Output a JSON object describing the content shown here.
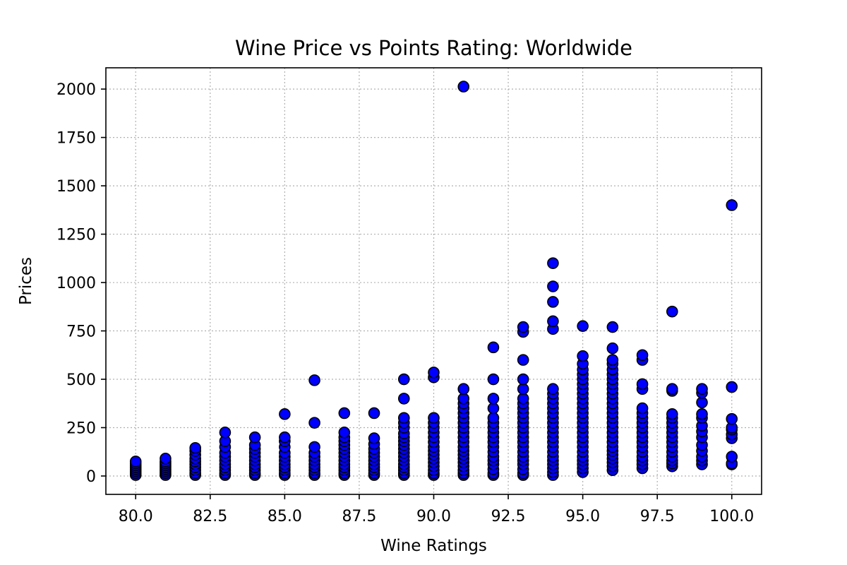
{
  "chart_data": {
    "type": "scatter",
    "title": "Wine Price vs Points Rating: Worldwide",
    "xlabel": "Wine Ratings",
    "ylabel": "Prices",
    "xlim": [
      79.0,
      101.0
    ],
    "ylim": [
      -95,
      2110
    ],
    "xticks": [
      80.0,
      82.5,
      85.0,
      87.5,
      90.0,
      92.5,
      95.0,
      97.5,
      100.0
    ],
    "xtick_labels": [
      "80.0",
      "82.5",
      "85.0",
      "87.5",
      "90.0",
      "92.5",
      "95.0",
      "97.5",
      "100.0"
    ],
    "yticks": [
      0,
      250,
      500,
      750,
      1000,
      1250,
      1500,
      1750,
      2000
    ],
    "ytick_labels": [
      "0",
      "250",
      "500",
      "750",
      "1000",
      "1250",
      "1500",
      "1750",
      "2000"
    ],
    "grid": true,
    "marker_color": "#0000ff",
    "marker_edge_color": "#000000",
    "points": [
      [
        80,
        5
      ],
      [
        80,
        15
      ],
      [
        80,
        25
      ],
      [
        80,
        35
      ],
      [
        80,
        45
      ],
      [
        80,
        55
      ],
      [
        80,
        65
      ],
      [
        80,
        75
      ],
      [
        81,
        5
      ],
      [
        81,
        15
      ],
      [
        81,
        25
      ],
      [
        81,
        35
      ],
      [
        81,
        45
      ],
      [
        81,
        55
      ],
      [
        81,
        65
      ],
      [
        81,
        75
      ],
      [
        81,
        90
      ],
      [
        82,
        5
      ],
      [
        82,
        15
      ],
      [
        82,
        30
      ],
      [
        82,
        45
      ],
      [
        82,
        60
      ],
      [
        82,
        75
      ],
      [
        82,
        90
      ],
      [
        82,
        110
      ],
      [
        82,
        130
      ],
      [
        82,
        145
      ],
      [
        83,
        5
      ],
      [
        83,
        15
      ],
      [
        83,
        30
      ],
      [
        83,
        45
      ],
      [
        83,
        60
      ],
      [
        83,
        80
      ],
      [
        83,
        100
      ],
      [
        83,
        120
      ],
      [
        83,
        150
      ],
      [
        83,
        180
      ],
      [
        83,
        225
      ],
      [
        84,
        5
      ],
      [
        84,
        15
      ],
      [
        84,
        30
      ],
      [
        84,
        45
      ],
      [
        84,
        60
      ],
      [
        84,
        80
      ],
      [
        84,
        100
      ],
      [
        84,
        120
      ],
      [
        84,
        140
      ],
      [
        84,
        160
      ],
      [
        84,
        200
      ],
      [
        85,
        5
      ],
      [
        85,
        15
      ],
      [
        85,
        30
      ],
      [
        85,
        45
      ],
      [
        85,
        60
      ],
      [
        85,
        80
      ],
      [
        85,
        100
      ],
      [
        85,
        120
      ],
      [
        85,
        150
      ],
      [
        85,
        180
      ],
      [
        85,
        200
      ],
      [
        85,
        320
      ],
      [
        86,
        5
      ],
      [
        86,
        15
      ],
      [
        86,
        30
      ],
      [
        86,
        45
      ],
      [
        86,
        60
      ],
      [
        86,
        80
      ],
      [
        86,
        100
      ],
      [
        86,
        120
      ],
      [
        86,
        150
      ],
      [
        86,
        275
      ],
      [
        86,
        495
      ],
      [
        87,
        5
      ],
      [
        87,
        15
      ],
      [
        87,
        30
      ],
      [
        87,
        45
      ],
      [
        87,
        60
      ],
      [
        87,
        80
      ],
      [
        87,
        100
      ],
      [
        87,
        120
      ],
      [
        87,
        140
      ],
      [
        87,
        160
      ],
      [
        87,
        180
      ],
      [
        87,
        200
      ],
      [
        87,
        225
      ],
      [
        87,
        325
      ],
      [
        88,
        5
      ],
      [
        88,
        15
      ],
      [
        88,
        30
      ],
      [
        88,
        45
      ],
      [
        88,
        60
      ],
      [
        88,
        80
      ],
      [
        88,
        100
      ],
      [
        88,
        120
      ],
      [
        88,
        140
      ],
      [
        88,
        165
      ],
      [
        88,
        195
      ],
      [
        88,
        325
      ],
      [
        89,
        5
      ],
      [
        89,
        15
      ],
      [
        89,
        30
      ],
      [
        89,
        45
      ],
      [
        89,
        60
      ],
      [
        89,
        80
      ],
      [
        89,
        100
      ],
      [
        89,
        120
      ],
      [
        89,
        140
      ],
      [
        89,
        160
      ],
      [
        89,
        180
      ],
      [
        89,
        200
      ],
      [
        89,
        220
      ],
      [
        89,
        250
      ],
      [
        89,
        275
      ],
      [
        89,
        300
      ],
      [
        89,
        400
      ],
      [
        89,
        500
      ],
      [
        90,
        5
      ],
      [
        90,
        15
      ],
      [
        90,
        30
      ],
      [
        90,
        50
      ],
      [
        90,
        70
      ],
      [
        90,
        90
      ],
      [
        90,
        110
      ],
      [
        90,
        130
      ],
      [
        90,
        150
      ],
      [
        90,
        175
      ],
      [
        90,
        200
      ],
      [
        90,
        225
      ],
      [
        90,
        250
      ],
      [
        90,
        275
      ],
      [
        90,
        300
      ],
      [
        90,
        510
      ],
      [
        90,
        535
      ],
      [
        91,
        5
      ],
      [
        91,
        15
      ],
      [
        91,
        30
      ],
      [
        91,
        50
      ],
      [
        91,
        70
      ],
      [
        91,
        90
      ],
      [
        91,
        110
      ],
      [
        91,
        130
      ],
      [
        91,
        150
      ],
      [
        91,
        175
      ],
      [
        91,
        200
      ],
      [
        91,
        225
      ],
      [
        91,
        250
      ],
      [
        91,
        275
      ],
      [
        91,
        300
      ],
      [
        91,
        325
      ],
      [
        91,
        350
      ],
      [
        91,
        375
      ],
      [
        91,
        400
      ],
      [
        91,
        450
      ],
      [
        91,
        2013
      ],
      [
        92,
        5
      ],
      [
        92,
        15
      ],
      [
        92,
        35
      ],
      [
        92,
        60
      ],
      [
        92,
        80
      ],
      [
        92,
        100
      ],
      [
        92,
        125
      ],
      [
        92,
        150
      ],
      [
        92,
        175
      ],
      [
        92,
        200
      ],
      [
        92,
        225
      ],
      [
        92,
        250
      ],
      [
        92,
        275
      ],
      [
        92,
        300
      ],
      [
        92,
        350
      ],
      [
        92,
        400
      ],
      [
        92,
        500
      ],
      [
        92,
        665
      ],
      [
        93,
        5
      ],
      [
        93,
        15
      ],
      [
        93,
        35
      ],
      [
        93,
        60
      ],
      [
        93,
        80
      ],
      [
        93,
        100
      ],
      [
        93,
        125
      ],
      [
        93,
        150
      ],
      [
        93,
        175
      ],
      [
        93,
        200
      ],
      [
        93,
        225
      ],
      [
        93,
        250
      ],
      [
        93,
        275
      ],
      [
        93,
        300
      ],
      [
        93,
        325
      ],
      [
        93,
        350
      ],
      [
        93,
        375
      ],
      [
        93,
        400
      ],
      [
        93,
        450
      ],
      [
        93,
        500
      ],
      [
        93,
        600
      ],
      [
        93,
        745
      ],
      [
        93,
        770
      ],
      [
        94,
        5
      ],
      [
        94,
        20
      ],
      [
        94,
        40
      ],
      [
        94,
        60
      ],
      [
        94,
        80
      ],
      [
        94,
        100
      ],
      [
        94,
        125
      ],
      [
        94,
        150
      ],
      [
        94,
        175
      ],
      [
        94,
        200
      ],
      [
        94,
        225
      ],
      [
        94,
        250
      ],
      [
        94,
        275
      ],
      [
        94,
        300
      ],
      [
        94,
        325
      ],
      [
        94,
        350
      ],
      [
        94,
        375
      ],
      [
        94,
        400
      ],
      [
        94,
        425
      ],
      [
        94,
        450
      ],
      [
        94,
        760
      ],
      [
        94,
        800
      ],
      [
        94,
        900
      ],
      [
        94,
        980
      ],
      [
        94,
        1100
      ],
      [
        95,
        20
      ],
      [
        95,
        40
      ],
      [
        95,
        60
      ],
      [
        95,
        80
      ],
      [
        95,
        100
      ],
      [
        95,
        125
      ],
      [
        95,
        150
      ],
      [
        95,
        175
      ],
      [
        95,
        200
      ],
      [
        95,
        225
      ],
      [
        95,
        250
      ],
      [
        95,
        275
      ],
      [
        95,
        300
      ],
      [
        95,
        325
      ],
      [
        95,
        350
      ],
      [
        95,
        375
      ],
      [
        95,
        400
      ],
      [
        95,
        425
      ],
      [
        95,
        450
      ],
      [
        95,
        475
      ],
      [
        95,
        500
      ],
      [
        95,
        525
      ],
      [
        95,
        550
      ],
      [
        95,
        580
      ],
      [
        95,
        620
      ],
      [
        95,
        775
      ],
      [
        96,
        30
      ],
      [
        96,
        50
      ],
      [
        96,
        70
      ],
      [
        96,
        90
      ],
      [
        96,
        110
      ],
      [
        96,
        130
      ],
      [
        96,
        150
      ],
      [
        96,
        175
      ],
      [
        96,
        200
      ],
      [
        96,
        225
      ],
      [
        96,
        250
      ],
      [
        96,
        275
      ],
      [
        96,
        300
      ],
      [
        96,
        325
      ],
      [
        96,
        350
      ],
      [
        96,
        375
      ],
      [
        96,
        400
      ],
      [
        96,
        425
      ],
      [
        96,
        450
      ],
      [
        96,
        475
      ],
      [
        96,
        500
      ],
      [
        96,
        525
      ],
      [
        96,
        550
      ],
      [
        96,
        580
      ],
      [
        96,
        600
      ],
      [
        96,
        660
      ],
      [
        96,
        770
      ],
      [
        97,
        40
      ],
      [
        97,
        60
      ],
      [
        97,
        80
      ],
      [
        97,
        100
      ],
      [
        97,
        125
      ],
      [
        97,
        150
      ],
      [
        97,
        175
      ],
      [
        97,
        200
      ],
      [
        97,
        225
      ],
      [
        97,
        250
      ],
      [
        97,
        275
      ],
      [
        97,
        300
      ],
      [
        97,
        325
      ],
      [
        97,
        350
      ],
      [
        97,
        450
      ],
      [
        97,
        475
      ],
      [
        97,
        600
      ],
      [
        97,
        625
      ],
      [
        98,
        50
      ],
      [
        98,
        65
      ],
      [
        98,
        80
      ],
      [
        98,
        100
      ],
      [
        98,
        125
      ],
      [
        98,
        150
      ],
      [
        98,
        175
      ],
      [
        98,
        200
      ],
      [
        98,
        225
      ],
      [
        98,
        250
      ],
      [
        98,
        275
      ],
      [
        98,
        300
      ],
      [
        98,
        320
      ],
      [
        98,
        440
      ],
      [
        98,
        450
      ],
      [
        98,
        850
      ],
      [
        99,
        60
      ],
      [
        99,
        80
      ],
      [
        99,
        100
      ],
      [
        99,
        130
      ],
      [
        99,
        160
      ],
      [
        99,
        200
      ],
      [
        99,
        230
      ],
      [
        99,
        260
      ],
      [
        99,
        300
      ],
      [
        99,
        320
      ],
      [
        99,
        380
      ],
      [
        99,
        430
      ],
      [
        99,
        450
      ],
      [
        100,
        60
      ],
      [
        100,
        65
      ],
      [
        100,
        100
      ],
      [
        100,
        195
      ],
      [
        100,
        215
      ],
      [
        100,
        240
      ],
      [
        100,
        250
      ],
      [
        100,
        295
      ],
      [
        100,
        460
      ],
      [
        100,
        1400
      ]
    ]
  }
}
